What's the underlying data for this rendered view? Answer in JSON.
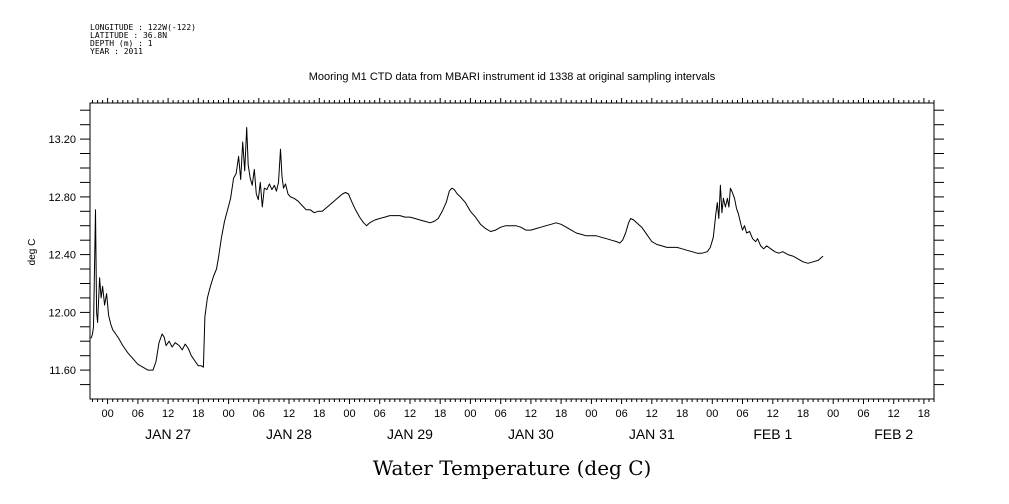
{
  "header": {
    "meta_lines": [
      "LONGITUDE : 122W(-122)",
      "LATITUDE : 36.8N",
      "DEPTH (m) : 1",
      "YEAR : 2011"
    ]
  },
  "chart_data": {
    "type": "line",
    "title": "Mooring M1 CTD data from MBARI instrument id 1338 at original sampling intervals",
    "xlabel": "Water Temperature (deg C)",
    "ylabel": "deg C",
    "ylim": [
      11.4,
      13.45
    ],
    "yticks": [
      11.6,
      12.0,
      12.4,
      12.8,
      13.2
    ],
    "ytick_labels": [
      "11.60",
      "12.00",
      "12.40",
      "12.80",
      "13.20"
    ],
    "x_units": "hours since 2011-01-27 00:00",
    "xlim": [
      -3.5,
      164
    ],
    "xticks": [
      0,
      6,
      12,
      18,
      24,
      30,
      36,
      42,
      48,
      54,
      60,
      66,
      72,
      78,
      84,
      90,
      96,
      102,
      108,
      114,
      120,
      126,
      132,
      138,
      144,
      150,
      156,
      162
    ],
    "xtick_labels": [
      "00",
      "06",
      "12",
      "18",
      "00",
      "06",
      "12",
      "18",
      "00",
      "06",
      "12",
      "18",
      "00",
      "06",
      "12",
      "18",
      "00",
      "06",
      "12",
      "18",
      "00",
      "06",
      "12",
      "18",
      "00",
      "06",
      "12",
      "18"
    ],
    "day_labels": [
      {
        "label": "JAN 27",
        "x": 12
      },
      {
        "label": "JAN 28",
        "x": 36
      },
      {
        "label": "JAN 29",
        "x": 60
      },
      {
        "label": "JAN 30",
        "x": 84
      },
      {
        "label": "JAN 31",
        "x": 108
      },
      {
        "label": "FEB  1",
        "x": 132
      },
      {
        "label": "FEB  2",
        "x": 156
      }
    ],
    "series": [
      {
        "color": "#000000",
        "points": [
          [
            -3.3,
            11.82
          ],
          [
            -3.0,
            11.85
          ],
          [
            -2.8,
            11.9
          ],
          [
            -2.6,
            12.3
          ],
          [
            -2.4,
            12.71
          ],
          [
            -2.2,
            12.0
          ],
          [
            -2.0,
            11.93
          ],
          [
            -1.6,
            12.24
          ],
          [
            -1.3,
            12.1
          ],
          [
            -1.0,
            12.18
          ],
          [
            -0.6,
            12.05
          ],
          [
            -0.2,
            12.13
          ],
          [
            0.2,
            11.98
          ],
          [
            0.6,
            11.92
          ],
          [
            1.0,
            11.88
          ],
          [
            1.6,
            11.85
          ],
          [
            2.2,
            11.82
          ],
          [
            3.0,
            11.77
          ],
          [
            4.0,
            11.72
          ],
          [
            5.0,
            11.68
          ],
          [
            6.0,
            11.64
          ],
          [
            7.0,
            11.62
          ],
          [
            8.0,
            11.6
          ],
          [
            9.0,
            11.6
          ],
          [
            9.6,
            11.66
          ],
          [
            10.2,
            11.79
          ],
          [
            10.8,
            11.85
          ],
          [
            11.2,
            11.83
          ],
          [
            11.6,
            11.77
          ],
          [
            12.2,
            11.8
          ],
          [
            12.8,
            11.76
          ],
          [
            13.4,
            11.79
          ],
          [
            14.2,
            11.77
          ],
          [
            14.8,
            11.74
          ],
          [
            15.4,
            11.78
          ],
          [
            16.0,
            11.75
          ],
          [
            16.6,
            11.7
          ],
          [
            17.4,
            11.66
          ],
          [
            18.0,
            11.63
          ],
          [
            18.6,
            11.63
          ],
          [
            19.0,
            11.62
          ],
          [
            19.3,
            11.97
          ],
          [
            19.8,
            12.1
          ],
          [
            20.4,
            12.18
          ],
          [
            21.0,
            12.25
          ],
          [
            21.6,
            12.3
          ],
          [
            22.0,
            12.38
          ],
          [
            22.6,
            12.52
          ],
          [
            23.2,
            12.63
          ],
          [
            23.8,
            12.71
          ],
          [
            24.4,
            12.79
          ],
          [
            25.0,
            12.93
          ],
          [
            25.5,
            12.96
          ],
          [
            26.0,
            13.08
          ],
          [
            26.4,
            12.92
          ],
          [
            26.8,
            13.18
          ],
          [
            27.2,
            12.98
          ],
          [
            27.6,
            13.28
          ],
          [
            27.9,
            13.02
          ],
          [
            28.3,
            12.93
          ],
          [
            28.7,
            12.88
          ],
          [
            29.1,
            12.99
          ],
          [
            29.5,
            12.82
          ],
          [
            29.9,
            12.78
          ],
          [
            30.3,
            12.9
          ],
          [
            30.7,
            12.73
          ],
          [
            31.1,
            12.86
          ],
          [
            31.6,
            12.85
          ],
          [
            32.1,
            12.89
          ],
          [
            32.6,
            12.85
          ],
          [
            33.1,
            12.88
          ],
          [
            33.5,
            12.84
          ],
          [
            33.9,
            12.9
          ],
          [
            34.3,
            13.13
          ],
          [
            34.6,
            12.94
          ],
          [
            34.9,
            12.86
          ],
          [
            35.3,
            12.89
          ],
          [
            35.8,
            12.82
          ],
          [
            36.3,
            12.8
          ],
          [
            37.0,
            12.79
          ],
          [
            37.8,
            12.77
          ],
          [
            38.6,
            12.74
          ],
          [
            39.4,
            12.71
          ],
          [
            40.2,
            12.71
          ],
          [
            41.0,
            12.69
          ],
          [
            41.8,
            12.7
          ],
          [
            42.6,
            12.7
          ],
          [
            43.6,
            12.73
          ],
          [
            44.6,
            12.76
          ],
          [
            45.6,
            12.79
          ],
          [
            46.6,
            12.82
          ],
          [
            47.2,
            12.83
          ],
          [
            47.8,
            12.82
          ],
          [
            48.4,
            12.77
          ],
          [
            49.2,
            12.71
          ],
          [
            50.0,
            12.66
          ],
          [
            50.8,
            12.62
          ],
          [
            51.4,
            12.6
          ],
          [
            52.0,
            12.62
          ],
          [
            53.0,
            12.64
          ],
          [
            54.0,
            12.65
          ],
          [
            55.0,
            12.66
          ],
          [
            56.0,
            12.67
          ],
          [
            57.0,
            12.67
          ],
          [
            58.0,
            12.67
          ],
          [
            59.0,
            12.66
          ],
          [
            60.0,
            12.66
          ],
          [
            61.0,
            12.65
          ],
          [
            62.0,
            12.64
          ],
          [
            63.0,
            12.63
          ],
          [
            64.0,
            12.62
          ],
          [
            64.8,
            12.63
          ],
          [
            65.6,
            12.65
          ],
          [
            66.4,
            12.7
          ],
          [
            67.2,
            12.76
          ],
          [
            67.8,
            12.84
          ],
          [
            68.3,
            12.86
          ],
          [
            68.8,
            12.85
          ],
          [
            69.4,
            12.82
          ],
          [
            70.0,
            12.8
          ],
          [
            71.0,
            12.76
          ],
          [
            72.0,
            12.7
          ],
          [
            73.0,
            12.66
          ],
          [
            74.0,
            12.61
          ],
          [
            75.0,
            12.58
          ],
          [
            76.0,
            12.56
          ],
          [
            77.0,
            12.57
          ],
          [
            78.0,
            12.59
          ],
          [
            79.0,
            12.6
          ],
          [
            80.0,
            12.6
          ],
          [
            81.0,
            12.6
          ],
          [
            82.0,
            12.59
          ],
          [
            83.0,
            12.57
          ],
          [
            84.0,
            12.57
          ],
          [
            85.0,
            12.58
          ],
          [
            86.0,
            12.59
          ],
          [
            87.0,
            12.6
          ],
          [
            88.0,
            12.61
          ],
          [
            89.0,
            12.62
          ],
          [
            90.0,
            12.61
          ],
          [
            91.0,
            12.59
          ],
          [
            92.0,
            12.57
          ],
          [
            93.0,
            12.55
          ],
          [
            94.0,
            12.54
          ],
          [
            95.0,
            12.53
          ],
          [
            96.0,
            12.53
          ],
          [
            97.0,
            12.53
          ],
          [
            98.0,
            12.52
          ],
          [
            99.0,
            12.51
          ],
          [
            100.0,
            12.5
          ],
          [
            101.0,
            12.49
          ],
          [
            101.6,
            12.48
          ],
          [
            102.2,
            12.5
          ],
          [
            102.8,
            12.55
          ],
          [
            103.4,
            12.62
          ],
          [
            103.8,
            12.65
          ],
          [
            104.4,
            12.64
          ],
          [
            105.0,
            12.62
          ],
          [
            106.0,
            12.59
          ],
          [
            107.0,
            12.54
          ],
          [
            108.0,
            12.49
          ],
          [
            109.0,
            12.47
          ],
          [
            110.0,
            12.46
          ],
          [
            111.0,
            12.45
          ],
          [
            112.0,
            12.45
          ],
          [
            113.0,
            12.45
          ],
          [
            114.0,
            12.44
          ],
          [
            115.0,
            12.43
          ],
          [
            116.0,
            12.42
          ],
          [
            117.0,
            12.41
          ],
          [
            118.0,
            12.41
          ],
          [
            119.0,
            12.42
          ],
          [
            119.6,
            12.45
          ],
          [
            120.2,
            12.52
          ],
          [
            120.7,
            12.68
          ],
          [
            121.0,
            12.76
          ],
          [
            121.3,
            12.65
          ],
          [
            121.6,
            12.88
          ],
          [
            121.9,
            12.69
          ],
          [
            122.2,
            12.79
          ],
          [
            122.6,
            12.73
          ],
          [
            123.0,
            12.79
          ],
          [
            123.3,
            12.73
          ],
          [
            123.6,
            12.86
          ],
          [
            124.0,
            12.83
          ],
          [
            124.4,
            12.79
          ],
          [
            124.8,
            12.72
          ],
          [
            125.2,
            12.68
          ],
          [
            125.6,
            12.62
          ],
          [
            126.0,
            12.57
          ],
          [
            126.4,
            12.6
          ],
          [
            126.8,
            12.55
          ],
          [
            127.4,
            12.56
          ],
          [
            128.0,
            12.51
          ],
          [
            128.6,
            12.49
          ],
          [
            129.0,
            12.51
          ],
          [
            129.6,
            12.46
          ],
          [
            130.2,
            12.44
          ],
          [
            130.8,
            12.46
          ],
          [
            131.6,
            12.44
          ],
          [
            132.4,
            12.42
          ],
          [
            133.2,
            12.41
          ],
          [
            134.0,
            12.42
          ],
          [
            135.0,
            12.4
          ],
          [
            136.0,
            12.39
          ],
          [
            137.0,
            12.37
          ],
          [
            138.0,
            12.35
          ],
          [
            139.0,
            12.34
          ],
          [
            140.0,
            12.35
          ],
          [
            141.0,
            12.36
          ],
          [
            142.0,
            12.39
          ]
        ]
      }
    ]
  }
}
